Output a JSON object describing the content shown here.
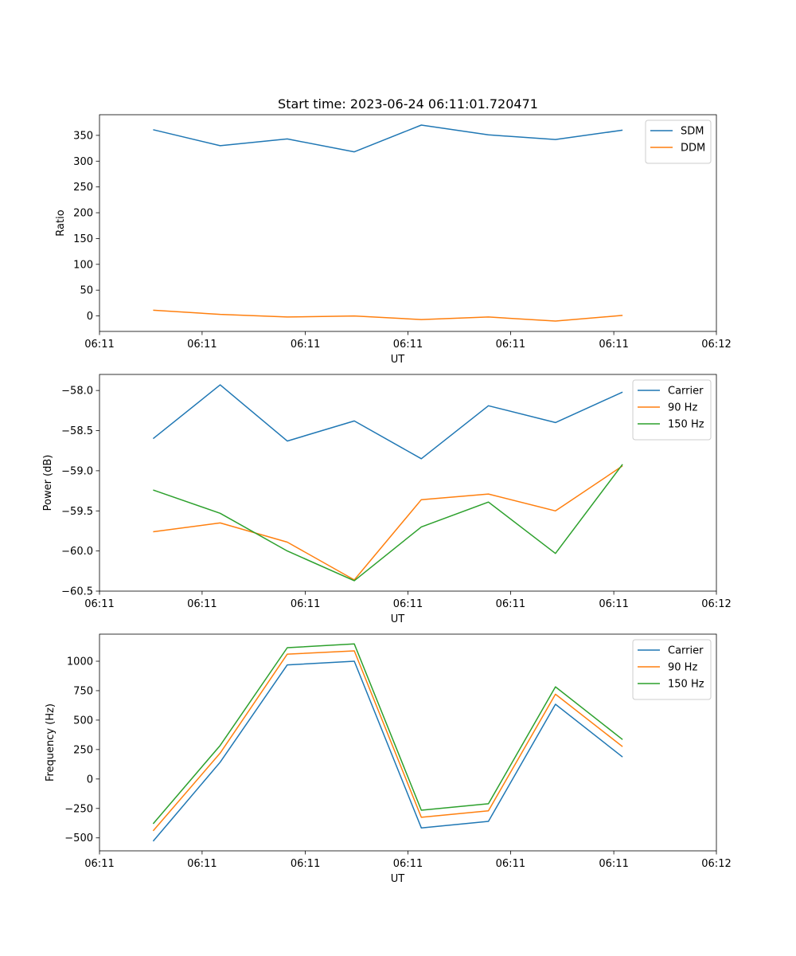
{
  "figure": {
    "title": "Start time: 2023-06-24 06:11:01.720471"
  },
  "chart_data": [
    {
      "type": "line",
      "title": "Start time: 2023-06-24 06:11:01.720471",
      "xlabel": "UT",
      "ylabel": "Ratio",
      "x_tick_labels": [
        "06:11",
        "06:11",
        "06:11",
        "06:11",
        "06:11",
        "06:11",
        "06:12"
      ],
      "y_ticks": [
        0,
        50,
        100,
        150,
        200,
        250,
        300,
        350
      ],
      "ylim": [
        -30,
        390
      ],
      "x": [
        1,
        2,
        3,
        4,
        5,
        6,
        7,
        8
      ],
      "xlim": [
        0.2,
        9.4
      ],
      "x_tick_positions": [
        0.2,
        1.73,
        3.27,
        4.8,
        6.33,
        7.87,
        9.4
      ],
      "grid": false,
      "legend_position": "top-right",
      "series": [
        {
          "name": "SDM",
          "color": "#1f77b4",
          "values": [
            361,
            330,
            343,
            318,
            370,
            351,
            342,
            360
          ]
        },
        {
          "name": "DDM",
          "color": "#ff7f0e",
          "values": [
            11,
            3,
            -2,
            0,
            -7,
            -2,
            -10,
            1
          ]
        }
      ]
    },
    {
      "type": "line",
      "title": "",
      "xlabel": "UT",
      "ylabel": "Power (dB)",
      "x_tick_labels": [
        "06:11",
        "06:11",
        "06:11",
        "06:11",
        "06:11",
        "06:11",
        "06:12"
      ],
      "y_ticks": [
        -60.5,
        -60.0,
        -59.5,
        -59.0,
        -58.5,
        -58.0
      ],
      "y_tick_labels": [
        "−60.5",
        "−60.0",
        "−59.5",
        "−59.0",
        "−58.5",
        "−58.0"
      ],
      "ylim": [
        -60.5,
        -57.8
      ],
      "x": [
        1,
        2,
        3,
        4,
        5,
        6,
        7,
        8
      ],
      "xlim": [
        0.2,
        9.4
      ],
      "x_tick_positions": [
        0.2,
        1.73,
        3.27,
        4.8,
        6.33,
        7.87,
        9.4
      ],
      "grid": false,
      "legend_position": "top-right",
      "series": [
        {
          "name": "Carrier",
          "color": "#1f77b4",
          "values": [
            -58.6,
            -57.93,
            -58.63,
            -58.38,
            -58.85,
            -58.19,
            -58.4,
            -58.02
          ]
        },
        {
          "name": "90 Hz",
          "color": "#ff7f0e",
          "values": [
            -59.76,
            -59.65,
            -59.89,
            -60.36,
            -59.36,
            -59.29,
            -59.5,
            -58.94
          ]
        },
        {
          "name": "150 Hz",
          "color": "#2ca02c",
          "values": [
            -59.24,
            -59.53,
            -60.0,
            -60.37,
            -59.7,
            -59.39,
            -60.03,
            -58.92
          ]
        }
      ]
    },
    {
      "type": "line",
      "title": "",
      "xlabel": "UT",
      "ylabel": "Frequency (Hz)",
      "x_tick_labels": [
        "06:11",
        "06:11",
        "06:11",
        "06:11",
        "06:11",
        "06:11",
        "06:12"
      ],
      "y_ticks": [
        -500,
        -250,
        0,
        250,
        500,
        750,
        1000
      ],
      "y_tick_labels": [
        "−500",
        "−250",
        "0",
        "250",
        "500",
        "750",
        "1000"
      ],
      "ylim": [
        -610,
        1230
      ],
      "x": [
        1,
        2,
        3,
        4,
        5,
        6,
        7,
        8
      ],
      "xlim": [
        0.2,
        9.4
      ],
      "x_tick_positions": [
        0.2,
        1.73,
        3.27,
        4.8,
        6.33,
        7.87,
        9.4
      ],
      "grid": false,
      "legend_position": "top-right",
      "series": [
        {
          "name": "Carrier",
          "color": "#1f77b4",
          "values": [
            -528,
            143,
            969,
            1000,
            -415,
            -360,
            635,
            187
          ]
        },
        {
          "name": "90 Hz",
          "color": "#ff7f0e",
          "values": [
            -440,
            220,
            1060,
            1088,
            -325,
            -270,
            720,
            275
          ]
        },
        {
          "name": "150 Hz",
          "color": "#2ca02c",
          "values": [
            -380,
            285,
            1115,
            1147,
            -265,
            -210,
            783,
            335
          ]
        }
      ]
    }
  ]
}
